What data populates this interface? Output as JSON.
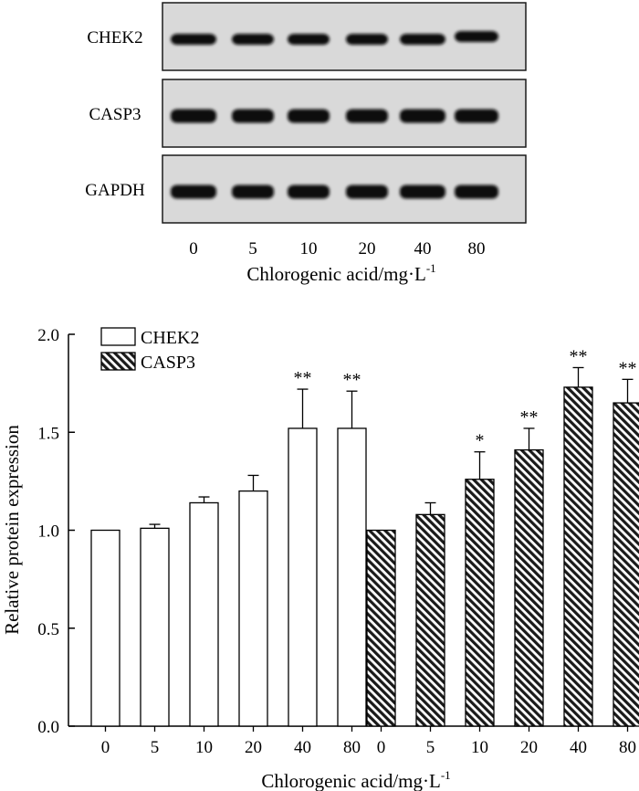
{
  "blot": {
    "rows": [
      {
        "label": "CHEK2"
      },
      {
        "label": "CASP3"
      },
      {
        "label": "GAPDH"
      }
    ],
    "lane_labels": [
      "0",
      "5",
      "10",
      "20",
      "40",
      "80"
    ],
    "xlabel": "Chlorogenic acid/mg·L",
    "xlabel_sup": "-1"
  },
  "chart_data": {
    "type": "bar",
    "ylabel": "Relative protein expression",
    "xlabel": "Chlorogenic acid/mg·L",
    "xlabel_sup": "-1",
    "ylim": [
      0,
      2.0
    ],
    "yticks": [
      "0.0",
      "0.5",
      "1.0",
      "1.5",
      "2.0"
    ],
    "legend_position": "top-left",
    "grid": false,
    "series": [
      {
        "name": "CHEK2",
        "fill": "open",
        "categories": [
          "0",
          "5",
          "10",
          "20",
          "40",
          "80"
        ],
        "values": [
          1.0,
          1.01,
          1.14,
          1.2,
          1.52,
          1.52
        ],
        "errors": [
          0.0,
          0.02,
          0.03,
          0.08,
          0.2,
          0.19
        ],
        "significance": [
          "",
          "",
          "",
          "",
          "**",
          "**"
        ]
      },
      {
        "name": "CASP3",
        "fill": "hatched",
        "categories": [
          "0",
          "5",
          "10",
          "20",
          "40",
          "80"
        ],
        "values": [
          1.0,
          1.08,
          1.26,
          1.41,
          1.73,
          1.65
        ],
        "errors": [
          0.0,
          0.06,
          0.14,
          0.11,
          0.1,
          0.12
        ],
        "significance": [
          "",
          "",
          "*",
          "**",
          "**",
          "**"
        ]
      }
    ]
  }
}
